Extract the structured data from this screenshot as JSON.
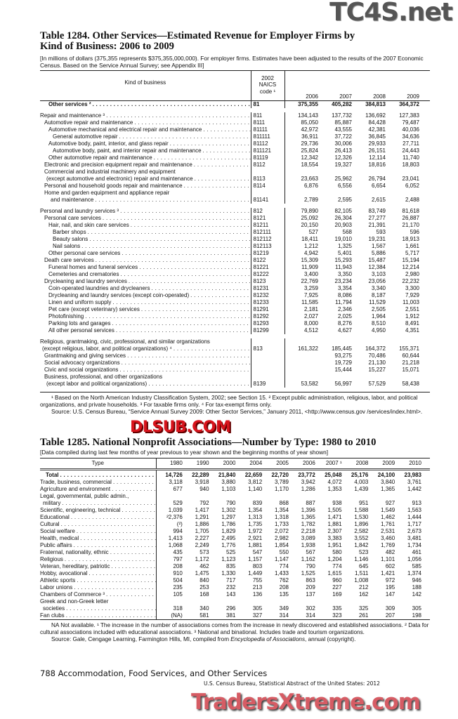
{
  "watermarks": {
    "top": "TC4S.net",
    "middle": "DLSUB.COM",
    "bottom": "TradersXtreme.com"
  },
  "t1284": {
    "title_line1": "Table 1284. Other Services—Estimated Revenue for Employer Firms by",
    "title_line2": "Kind of Business: 2006 to 2009",
    "subtitle": "[In millions of dollars (375,355 represents $375,355,000,000). For employer firms. Estimates have been adjusted to the results of the 2007 Economic Census. Based on the Service Annual Survey; see Appendix III]",
    "headers": {
      "kind": "Kind of business",
      "code_l1": "2002",
      "code_l2": "NAICS",
      "code_l3": "code ¹",
      "y1": "2006",
      "y2": "2007",
      "y3": "2008",
      "y4": "2009"
    },
    "rows": [
      [
        2,
        "Other services ²",
        "81",
        "375,355",
        "405,282",
        "384,813",
        "364,372",
        "b"
      ],
      [
        0,
        "Repair and maintenance ³",
        "811",
        "134,143",
        "137,732",
        "136,692",
        "127,383",
        "g"
      ],
      [
        1,
        "Automotive repair and maintenance",
        "8111",
        "85,050",
        "85,887",
        "84,428",
        "79,487",
        ""
      ],
      [
        2,
        "Automotive mechanical and electrical repair and maintenance",
        "81111",
        "42,972",
        "43,555",
        "42,381",
        "40,036",
        ""
      ],
      [
        3,
        "General automotive repair",
        "811111",
        "36,911",
        "37,722",
        "36,845",
        "34,636",
        ""
      ],
      [
        2,
        "Automotive body, paint, interior, and glass repair",
        "81112",
        "29,736",
        "30,006",
        "29,933",
        "27,711",
        ""
      ],
      [
        3,
        "Automotive body, paint, and interior repair and maintenance",
        "811121",
        "25,824",
        "26,413",
        "26,151",
        "24,443",
        ""
      ],
      [
        2,
        "Other automotive repair and maintenance",
        "81119",
        "12,342",
        "12,326",
        "12,114",
        "11,740",
        ""
      ],
      [
        1,
        "Electronic and precision equipment repair and maintenance",
        "8112",
        "18,554",
        "19,327",
        "18,816",
        "18,803",
        ""
      ],
      [
        1,
        "Commercial and industrial machinery and equipment",
        "",
        "",
        "",
        "",
        "",
        "h"
      ],
      [
        1.5,
        "(except automotive and electronic) repair and maintenance",
        "8113",
        "23,663",
        "25,962",
        "26,794",
        "23,041",
        ""
      ],
      [
        1,
        "Personal and household goods repair and maintenance",
        "8114",
        "6,876",
        "6,556",
        "6,654",
        "6,052",
        ""
      ],
      [
        1,
        "Home and garden equipment and appliance repair",
        "",
        "",
        "",
        "",
        "",
        "h"
      ],
      [
        2.5,
        "and maintenance",
        "81141",
        "2,789",
        "2,595",
        "2,615",
        "2,488",
        ""
      ],
      [
        0,
        "Personal and laundry services ³",
        "812",
        "79,890",
        "82,105",
        "83,749",
        "81,618",
        "g"
      ],
      [
        1,
        "Personal care services",
        "8121",
        "25,092",
        "26,304",
        "27,277",
        "26,887",
        ""
      ],
      [
        2,
        "Hair, nail, and skin care services",
        "81211",
        "20,150",
        "20,903",
        "21,391",
        "21,170",
        ""
      ],
      [
        3,
        "Barber shops",
        "812111",
        "527",
        "568",
        "593",
        "596",
        ""
      ],
      [
        3,
        "Beauty salons",
        "812112",
        "18,411",
        "19,010",
        "19,231",
        "18,913",
        ""
      ],
      [
        3,
        "Nail salons",
        "812113",
        "1,212",
        "1,325",
        "1,567",
        "1,661",
        ""
      ],
      [
        2,
        "Other personal care services",
        "81219",
        "4,942",
        "5,401",
        "5,886",
        "5,717",
        ""
      ],
      [
        1,
        "Death care services",
        "8122",
        "15,309",
        "15,293",
        "15,487",
        "15,194",
        ""
      ],
      [
        2,
        "Funeral homes and funeral services",
        "81221",
        "11,909",
        "11,943",
        "12,384",
        "12,214",
        ""
      ],
      [
        2,
        "Cemeteries and crematories",
        "81222",
        "3,400",
        "3,350",
        "3,103",
        "2,980",
        ""
      ],
      [
        1,
        "Drycleaning and laundry services",
        "8123",
        "22,769",
        "23,234",
        "23,056",
        "22,232",
        ""
      ],
      [
        2,
        "Coin-operated laundries and drycleaners",
        "81231",
        "3,259",
        "3,354",
        "3,340",
        "3,300",
        ""
      ],
      [
        2,
        "Drycleaning and laundry services (except coin-operated)",
        "81232",
        "7,925",
        "8,086",
        "8,187",
        "7,929",
        ""
      ],
      [
        2,
        "Linen and uniform supply",
        "81233",
        "11,585",
        "11,794",
        "11,529",
        "11,003",
        ""
      ],
      [
        2,
        "Pet care (except veterinary) services",
        "81291",
        "2,181",
        "2,346",
        "2,505",
        "2,551",
        ""
      ],
      [
        2,
        "Photofinishing",
        "81292",
        "2,027",
        "2,025",
        "1,964",
        "1,912",
        ""
      ],
      [
        2,
        "Parking lots and garages",
        "81293",
        "8,000",
        "8,276",
        "8,510",
        "8,491",
        ""
      ],
      [
        2,
        "All other personal services",
        "81299",
        "4,512",
        "4,627",
        "4,950",
        "4,351",
        ""
      ],
      [
        0,
        "Religious, grantmaking, civic, professional, and similar organizations",
        "",
        "",
        "",
        "",
        "",
        "hg"
      ],
      [
        0.5,
        "(except religious, labor, and political organizations) ⁴",
        "813",
        "161,322",
        "185,445",
        "164,372",
        "155,371",
        ""
      ],
      [
        1,
        "Grantmaking and giving services",
        "",
        "",
        "93,275",
        "70,486",
        "60,644",
        ""
      ],
      [
        1,
        "Social advocacy organizations",
        "",
        "",
        "19,729",
        "21,130",
        "21,218",
        ""
      ],
      [
        1,
        "Civic and social organizations",
        "",
        "",
        "15,444",
        "15,227",
        "15,071",
        ""
      ],
      [
        1,
        "Business, professional, and other organizations",
        "",
        "",
        "",
        "",
        "",
        "h"
      ],
      [
        1.5,
        "(except labor and political organizations)",
        "8139",
        "53,582",
        "56,997",
        "57,529",
        "58,438",
        ""
      ]
    ],
    "footnotes": "¹ Based on the North American Industry Classification System, 2002; see Section 15. ² Except public administration, religious, labor, and political organizations, and private households. ³ For taxable firms only. ⁴ For tax-exempt firms only.",
    "source": "Source: U.S. Census Bureau, “Service Annual Survey 2009: Other Sector Services,” January 2011, <http://www.census.gov /services/index.html>."
  },
  "t1285": {
    "title": "Table 1285. National Nonprofit Associations—Number by Type: 1980 to 2010",
    "subtitle": "[Data compiled during last few months of year previous to year shown and the beginning months of year shown]",
    "headers": [
      "Type",
      "1980",
      "1990",
      "2000",
      "2004",
      "2005",
      "2006",
      "2007 ¹",
      "2008",
      "2009",
      "2010"
    ],
    "rows": [
      [
        1,
        "Total",
        "14,726",
        "22,289",
        "21,840",
        "22,659",
        "22,720",
        "23,772",
        "25,048",
        "25,176",
        "24,100",
        "23,983",
        "b"
      ],
      [
        0,
        "Trade, business, commercial",
        "3,118",
        "3,918",
        "3,880",
        "3,812",
        "3,789",
        "3,942",
        "4,072",
        "4,003",
        "3,840",
        "3,761",
        ""
      ],
      [
        0,
        "Agriculture and environment",
        "677",
        "940",
        "1,103",
        "1,140",
        "1,170",
        "1,286",
        "1,353",
        "1,439",
        "1,365",
        "1,442",
        ""
      ],
      [
        0,
        "Legal, governmental, public admin.,",
        "",
        "",
        "",
        "",
        "",
        "",
        "",
        "",
        "",
        "",
        "h"
      ],
      [
        0.5,
        "military",
        "529",
        "792",
        "790",
        "839",
        "868",
        "887",
        "938",
        "951",
        "927",
        "913",
        ""
      ],
      [
        0,
        "Scientific, engineering, technical",
        "1,039",
        "1,417",
        "1,302",
        "1,354",
        "1,354",
        "1,396",
        "1,505",
        "1,588",
        "1,549",
        "1,563",
        ""
      ],
      [
        0,
        "Educational",
        "²2,376",
        "1,291",
        "1,297",
        "1,313",
        "1,318",
        "1,365",
        "1,471",
        "1,530",
        "1,462",
        "1,444",
        ""
      ],
      [
        0,
        "Cultural",
        "(²)",
        "1,886",
        "1,786",
        "1,735",
        "1,733",
        "1,782",
        "1,881",
        "1,896",
        "1,761",
        "1,717",
        ""
      ],
      [
        0,
        "Social welfare",
        "994",
        "1,705",
        "1,829",
        "1,972",
        "2,072",
        "2,218",
        "2,307",
        "2,582",
        "2,531",
        "2,673",
        ""
      ],
      [
        0,
        "Health, medical",
        "1,413",
        "2,227",
        "2,495",
        "2,921",
        "2,982",
        "3,089",
        "3,383",
        "3,552",
        "3,460",
        "3,481",
        ""
      ],
      [
        0,
        "Public affairs",
        "1,068",
        "2,249",
        "1,776",
        "1,881",
        "1,854",
        "1,938",
        "1,951",
        "1,842",
        "1,769",
        "1,734",
        ""
      ],
      [
        0,
        "Fraternal, nationality, ethnic",
        "435",
        "573",
        "525",
        "547",
        "550",
        "567",
        "580",
        "523",
        "482",
        "461",
        ""
      ],
      [
        0,
        "Religious",
        "797",
        "1,172",
        "1,123",
        "1,157",
        "1,147",
        "1,162",
        "1,204",
        "1,146",
        "1,101",
        "1,056",
        ""
      ],
      [
        0,
        "Veteran, hereditary, patriotic",
        "208",
        "462",
        "835",
        "803",
        "774",
        "790",
        "774",
        "645",
        "602",
        "585",
        ""
      ],
      [
        0,
        "Hobby, avocational",
        "910",
        "1,475",
        "1,330",
        "1,449",
        "1,433",
        "1,525",
        "1,615",
        "1,511",
        "1,421",
        "1,374",
        ""
      ],
      [
        0,
        "Athletic sports",
        "504",
        "840",
        "717",
        "755",
        "762",
        "863",
        "960",
        "1,008",
        "972",
        "946",
        ""
      ],
      [
        0,
        "Labor unions",
        "235",
        "253",
        "232",
        "213",
        "208",
        "209",
        "227",
        "212",
        "195",
        "188",
        ""
      ],
      [
        0,
        "Chambers of Commerce ³",
        "105",
        "168",
        "143",
        "136",
        "135",
        "137",
        "169",
        "162",
        "147",
        "142",
        ""
      ],
      [
        0,
        "Greek and non-Greek letter",
        "",
        "",
        "",
        "",
        "",
        "",
        "",
        "",
        "",
        "",
        "h"
      ],
      [
        0.5,
        "societies",
        "318",
        "340",
        "296",
        "305",
        "349",
        "302",
        "335",
        "325",
        "309",
        "305",
        ""
      ],
      [
        0,
        "Fan clubs",
        "(NA)",
        "581",
        "381",
        "327",
        "314",
        "314",
        "323",
        "261",
        "207",
        "198",
        ""
      ]
    ],
    "footnotes": "NA Not available. ¹ The increase in the number of associations comes from the increase in newly discovered and established associations. ² Data for cultural associations included with educational associations. ³ National and binational. Includes trade and tourism organizations.",
    "source_prefix": "Source: Gale, Cengage Learning, Farmington Hills, MI, compiled from ",
    "source_title": "Encyclopedia of Associations",
    "source_suffix": ", annual (copyright)."
  },
  "footer": {
    "page": "788  Accommodation, Food Services, and Other Services",
    "publication": "U.S. Census Bureau, Statistical Abstract of the United States: 2012"
  }
}
